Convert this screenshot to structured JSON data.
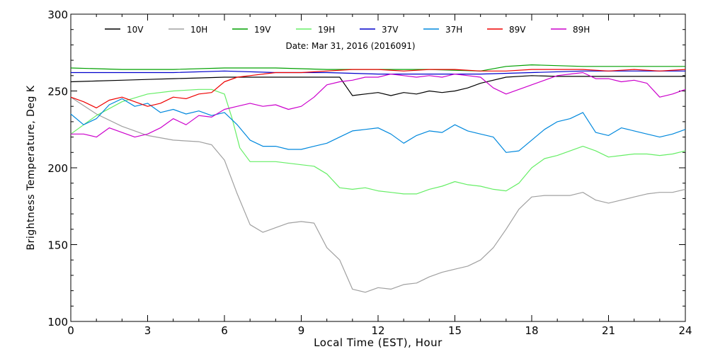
{
  "chart_data": {
    "type": "line",
    "title": "Date: Mar 31, 2016 (2016091)",
    "xlabel": "Local Time (EST), Hour",
    "ylabel": "Brightness Temperature, Deg K",
    "xlim": [
      0,
      24
    ],
    "ylim": [
      100,
      300
    ],
    "xticks": [
      0,
      3,
      6,
      9,
      12,
      15,
      18,
      21,
      24
    ],
    "xtick_labels": [
      "0",
      "3",
      "6",
      "9",
      "12",
      "15",
      "18",
      "21",
      "24"
    ],
    "yticks": [
      100,
      150,
      200,
      250,
      300
    ],
    "ytick_labels": [
      "100",
      "150",
      "200",
      "250",
      "300"
    ],
    "grid": false,
    "legend_position": "top",
    "series": [
      {
        "name": "10V",
        "color": "#000000",
        "x": [
          0,
          1,
          2,
          3,
          4,
          5,
          6,
          7,
          8,
          9,
          10,
          10.5,
          11,
          11.5,
          12,
          12.5,
          13,
          13.5,
          14,
          14.5,
          15,
          15.5,
          16,
          17,
          18,
          19,
          20,
          21,
          22,
          23,
          24
        ],
        "y": [
          256,
          256.5,
          257,
          257.5,
          258,
          258.5,
          259,
          259,
          259,
          259,
          259,
          259,
          247,
          248,
          249,
          247,
          249,
          248,
          250,
          249,
          250,
          252,
          255,
          259,
          260,
          259.5,
          259.5,
          259.5,
          259.5,
          259.5,
          259.5
        ]
      },
      {
        "name": "10H",
        "color": "#a0a0a0",
        "x": [
          0,
          1,
          2,
          3,
          4,
          5,
          5.5,
          6,
          6.5,
          7,
          7.5,
          8,
          8.5,
          9,
          9.5,
          10,
          10.5,
          11,
          11.5,
          12,
          12.5,
          13,
          13.5,
          14,
          14.5,
          15,
          15.5,
          16,
          16.5,
          17,
          17.5,
          18,
          18.5,
          19,
          19.5,
          20,
          20.5,
          21,
          21.5,
          22,
          22.5,
          23,
          23.5,
          24
        ],
        "y": [
          246,
          235,
          227,
          221,
          218,
          217,
          215,
          205,
          183,
          163,
          158,
          161,
          164,
          165,
          164,
          148,
          140,
          121,
          119,
          122,
          121,
          124,
          125,
          129,
          132,
          134,
          136,
          140,
          148,
          160,
          173,
          181,
          182,
          182,
          182,
          184,
          179,
          177,
          179,
          181,
          183,
          184,
          184,
          186
        ]
      },
      {
        "name": "19V",
        "color": "#00a000",
        "x": [
          0,
          2,
          4,
          6,
          8,
          10,
          12,
          14,
          16,
          17,
          18,
          20,
          22,
          24
        ],
        "y": [
          265,
          264,
          264,
          265,
          265,
          264,
          264,
          264,
          263,
          266,
          267,
          266,
          266,
          266
        ]
      },
      {
        "name": "19H",
        "color": "#66ee66",
        "x": [
          0,
          1,
          2,
          3,
          4,
          5,
          5.5,
          6,
          6.3,
          6.6,
          7,
          8,
          9,
          9.5,
          10,
          10.5,
          11,
          11.5,
          12,
          12.5,
          13,
          13.5,
          14,
          14.5,
          15,
          15.5,
          16,
          16.5,
          17,
          17.5,
          18,
          18.5,
          19,
          19.5,
          20,
          20.5,
          21,
          21.5,
          22,
          22.5,
          23,
          23.5,
          24
        ],
        "y": [
          222,
          234,
          243,
          248,
          250,
          251,
          251,
          248,
          232,
          213,
          204,
          204,
          202,
          201,
          196,
          187,
          186,
          187,
          185,
          184,
          183,
          183,
          186,
          188,
          191,
          189,
          188,
          186,
          185,
          190,
          200,
          206,
          208,
          211,
          214,
          211,
          207,
          208,
          209,
          209,
          208,
          209,
          211
        ]
      },
      {
        "name": "37V",
        "color": "#0000cc",
        "x": [
          0,
          2,
          4,
          6,
          8,
          10,
          12,
          14,
          16,
          18,
          20,
          22,
          24
        ],
        "y": [
          262,
          262,
          262,
          263,
          262,
          262,
          261,
          261,
          261,
          262,
          263,
          263,
          263
        ]
      },
      {
        "name": "37H",
        "color": "#0088dd",
        "x": [
          0,
          0.5,
          1,
          1.5,
          2,
          2.5,
          3,
          3.5,
          4,
          4.5,
          5,
          5.5,
          6,
          6.5,
          7,
          7.5,
          8,
          8.5,
          9,
          9.5,
          10,
          10.5,
          11,
          11.5,
          12,
          12.5,
          13,
          13.5,
          14,
          14.5,
          15,
          15.5,
          16,
          16.5,
          17,
          17.5,
          18,
          18.5,
          19,
          19.5,
          20,
          20.5,
          21,
          21.5,
          22,
          22.5,
          23,
          23.5,
          24
        ],
        "y": [
          235,
          228,
          232,
          241,
          245,
          240,
          242,
          236,
          238,
          235,
          237,
          234,
          236,
          228,
          218,
          214,
          214,
          212,
          212,
          214,
          216,
          220,
          224,
          225,
          226,
          222,
          216,
          221,
          224,
          223,
          228,
          224,
          222,
          220,
          210,
          211,
          218,
          225,
          230,
          232,
          236,
          223,
          221,
          226,
          224,
          222,
          220,
          222,
          225
        ]
      },
      {
        "name": "89V",
        "color": "#ee0000",
        "x": [
          0,
          0.5,
          1,
          1.5,
          2,
          2.5,
          3,
          3.5,
          4,
          4.5,
          5,
          5.5,
          6,
          6.5,
          7,
          8,
          9,
          10,
          11,
          12,
          13,
          14,
          15,
          16,
          17,
          18,
          19,
          20,
          21,
          22,
          23,
          24
        ],
        "y": [
          246,
          243,
          239,
          244,
          246,
          243,
          240,
          242,
          246,
          245,
          248,
          249,
          256,
          259,
          260,
          262,
          262,
          263,
          264,
          264,
          263,
          264,
          264,
          263,
          263,
          264,
          264,
          264,
          263,
          264,
          263,
          264
        ]
      },
      {
        "name": "89H",
        "color": "#cc00cc",
        "x": [
          0,
          0.5,
          1,
          1.5,
          2,
          2.5,
          3,
          3.5,
          4,
          4.5,
          5,
          5.5,
          6,
          6.5,
          7,
          7.5,
          8,
          8.5,
          9,
          9.5,
          10,
          10.5,
          11,
          11.5,
          12,
          12.5,
          13,
          13.5,
          14,
          14.5,
          15,
          15.5,
          16,
          16.5,
          17,
          17.5,
          18,
          18.5,
          19,
          19.5,
          20,
          20.5,
          21,
          21.5,
          22,
          22.5,
          23,
          23.5,
          24
        ],
        "y": [
          222,
          222,
          220,
          226,
          223,
          220,
          222,
          226,
          232,
          228,
          234,
          233,
          238,
          240,
          242,
          240,
          241,
          238,
          240,
          246,
          254,
          256,
          257,
          259,
          259,
          261,
          260,
          259,
          260,
          259,
          261,
          260,
          259,
          252,
          248,
          251,
          254,
          257,
          260,
          261,
          262,
          258,
          258,
          256,
          257,
          255,
          246,
          248,
          251
        ]
      }
    ]
  }
}
